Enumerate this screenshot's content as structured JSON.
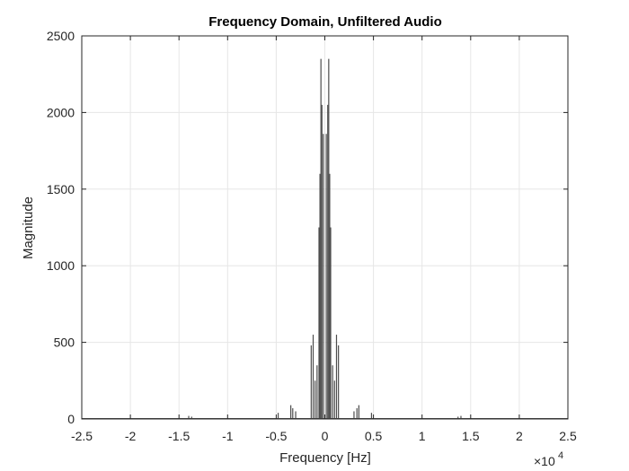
{
  "chart_data": {
    "type": "line",
    "title": "Frequency Domain, Unfiltered Audio",
    "xlabel": "Frequency [Hz]",
    "ylabel": "Magnitude",
    "x_exponent_base": "×10",
    "x_exponent_power": "4",
    "xlim": [
      -25000,
      25000
    ],
    "ylim": [
      0,
      2500
    ],
    "x_ticks": [
      -25000,
      -20000,
      -15000,
      -10000,
      -5000,
      0,
      5000,
      10000,
      15000,
      20000,
      25000
    ],
    "x_tick_labels": [
      "-2.5",
      "-2",
      "-1.5",
      "-1",
      "-0.5",
      "0",
      "0.5",
      "1",
      "1.5",
      "2",
      "2.5"
    ],
    "y_ticks": [
      0,
      500,
      1000,
      1500,
      2000,
      2500
    ],
    "y_tick_labels": [
      "0",
      "500",
      "1000",
      "1500",
      "2000",
      "2500"
    ],
    "grid": true,
    "series": [
      {
        "x": [
          -14000,
          -13700,
          -4800,
          -3500,
          -3300,
          -3000,
          -1400,
          -1200,
          -1000,
          -800,
          -600,
          -500,
          -400,
          -300,
          -150,
          150,
          300,
          400,
          500,
          600,
          800,
          1000,
          1200,
          1400,
          3000,
          3300,
          3500,
          4800,
          13700,
          14000
        ],
        "values": [
          20,
          15,
          40,
          90,
          70,
          50,
          480,
          550,
          250,
          350,
          1250,
          1600,
          2350,
          2050,
          1860,
          1860,
          2050,
          2350,
          1600,
          1250,
          350,
          250,
          550,
          480,
          50,
          70,
          90,
          40,
          15,
          20
        ]
      }
    ],
    "colors": {
      "series": "#4d4d4d",
      "axes": "#262626",
      "grid": "#e6e6e6"
    }
  }
}
